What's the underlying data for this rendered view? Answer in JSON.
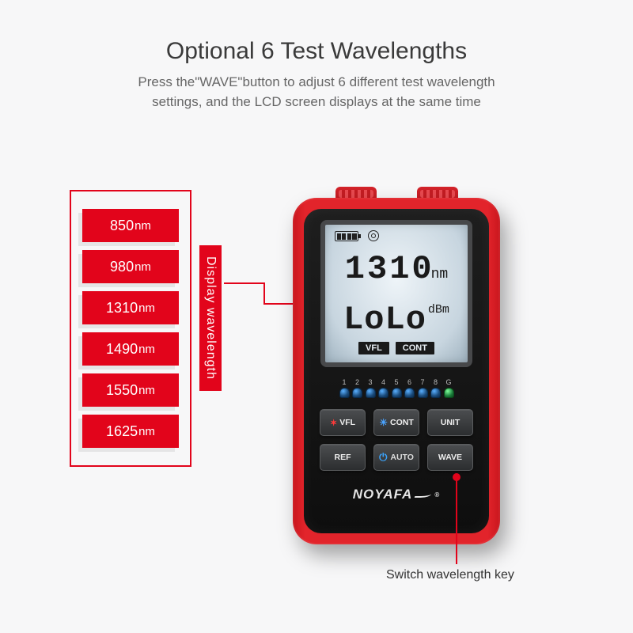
{
  "title": "Optional 6 Test Wavelengths",
  "subtitle_l1": "Press the\"WAVE\"button to adjust 6 different test wavelength",
  "subtitle_l2": "settings, and the LCD screen displays at the same time",
  "wavelengths": [
    "850",
    "980",
    "1310",
    "1490",
    "1550",
    "1625"
  ],
  "wavelength_unit": "nm",
  "vlabel": "Display wavelength",
  "callout_text": "Switch wavelength key",
  "lcd": {
    "reading": "1310",
    "reading_unit": "nm",
    "status": "LoLo",
    "status_unit": "dBm",
    "tag1": "VFL",
    "tag2": "CONT"
  },
  "leds": [
    "1",
    "2",
    "3",
    "4",
    "5",
    "6",
    "7",
    "8",
    "G"
  ],
  "buttons": {
    "vfl": "VFL",
    "cont": "CONT",
    "unit": "UNIT",
    "ref": "REF",
    "auto": "AUTO",
    "wave": "WAVE"
  },
  "brand": "NOYAFA",
  "colors": {
    "accent": "#e2041b",
    "device_red": "#e2242b",
    "background": "#f7f7f8"
  }
}
